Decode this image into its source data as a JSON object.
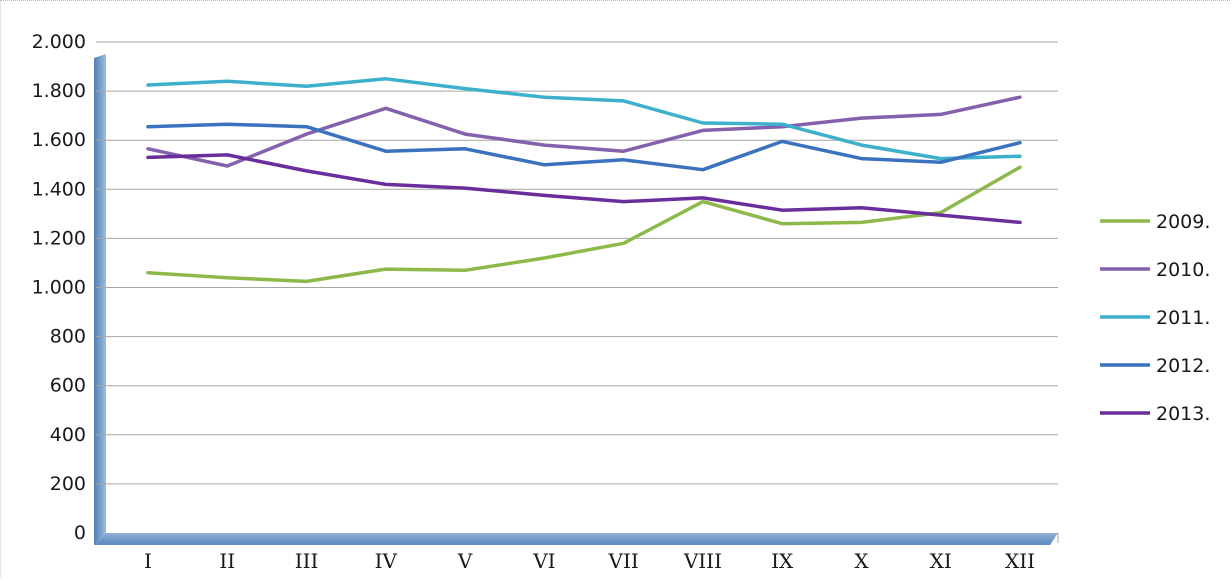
{
  "chart_data": {
    "type": "line",
    "title": "",
    "xlabel": "",
    "ylabel": "",
    "categories": [
      "I",
      "II",
      "III",
      "IV",
      "V",
      "VI",
      "VII",
      "VIII",
      "IX",
      "X",
      "XI",
      "XII"
    ],
    "ylim": [
      0,
      2000
    ],
    "yticks": [
      {
        "value": 0,
        "label": "0"
      },
      {
        "value": 200,
        "label": "200"
      },
      {
        "value": 400,
        "label": "400"
      },
      {
        "value": 600,
        "label": "600"
      },
      {
        "value": 800,
        "label": "800"
      },
      {
        "value": 1000,
        "label": "1.000"
      },
      {
        "value": 1200,
        "label": "1.200"
      },
      {
        "value": 1400,
        "label": "1.400"
      },
      {
        "value": 1600,
        "label": "1.600"
      },
      {
        "value": 1800,
        "label": "1.800"
      },
      {
        "value": 2000,
        "label": "2.000"
      }
    ],
    "grid": true,
    "legend_position": "right",
    "series": [
      {
        "name": "2009.",
        "color": "#8db94a",
        "values": [
          1060,
          1040,
          1025,
          1075,
          1070,
          1120,
          1180,
          1350,
          1260,
          1265,
          1305,
          1490
        ]
      },
      {
        "name": "2010.",
        "color": "#8361ad",
        "values": [
          1565,
          1495,
          1625,
          1730,
          1625,
          1580,
          1555,
          1640,
          1655,
          1690,
          1705,
          1775
        ]
      },
      {
        "name": "2011.",
        "color": "#3cb0cd",
        "values": [
          1825,
          1840,
          1820,
          1850,
          1810,
          1775,
          1760,
          1670,
          1665,
          1580,
          1525,
          1535
        ]
      },
      {
        "name": "2012.",
        "color": "#3a72bd",
        "values": [
          1655,
          1665,
          1655,
          1555,
          1565,
          1500,
          1520,
          1480,
          1595,
          1525,
          1510,
          1590
        ]
      },
      {
        "name": "2013.",
        "color": "#6a2d9c",
        "values": [
          1530,
          1540,
          1475,
          1420,
          1405,
          1375,
          1350,
          1365,
          1315,
          1325,
          1295,
          1265
        ]
      }
    ]
  }
}
